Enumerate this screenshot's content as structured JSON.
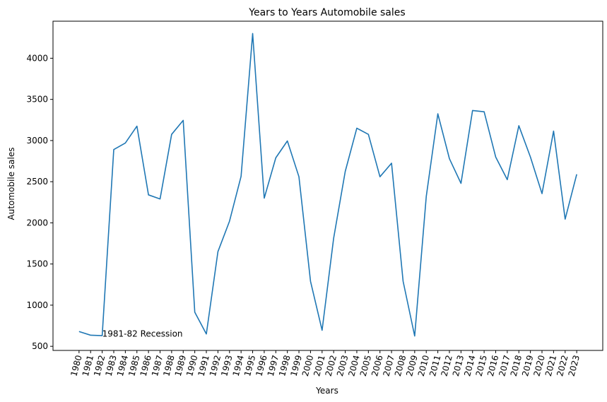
{
  "chart_data": {
    "type": "line",
    "title": "Years to Years Automobile sales",
    "xlabel": "Years",
    "ylabel": "Automobile sales",
    "x": [
      1980,
      1981,
      1982,
      1983,
      1984,
      1985,
      1986,
      1987,
      1988,
      1989,
      1990,
      1991,
      1992,
      1993,
      1994,
      1995,
      1996,
      1997,
      1998,
      1999,
      2000,
      2001,
      2002,
      2003,
      2004,
      2005,
      2006,
      2007,
      2008,
      2009,
      2010,
      2011,
      2012,
      2013,
      2014,
      2015,
      2016,
      2017,
      2018,
      2019,
      2020,
      2021,
      2022,
      2023
    ],
    "series": [
      {
        "color": "#1f77b4",
        "values": [
          680,
          635,
          630,
          2890,
          2970,
          3175,
          2340,
          2290,
          3075,
          3245,
          915,
          650,
          1650,
          2020,
          2565,
          4300,
          2300,
          2790,
          2995,
          2560,
          1290,
          695,
          1815,
          2625,
          3150,
          3075,
          2560,
          2725,
          1290,
          625,
          2320,
          3325,
          2780,
          2480,
          3365,
          3350,
          2800,
          2525,
          3180,
          2800,
          2355,
          3115,
          2045,
          2590
        ]
      }
    ],
    "ylim": [
      450,
      4450
    ],
    "yticks": [
      500,
      1000,
      1500,
      2000,
      2500,
      3000,
      3500,
      4000
    ],
    "annotations": [
      {
        "text": "1981-82 Recession",
        "x": 1982,
        "y": 650
      }
    ],
    "grid": false,
    "legend": "none"
  }
}
